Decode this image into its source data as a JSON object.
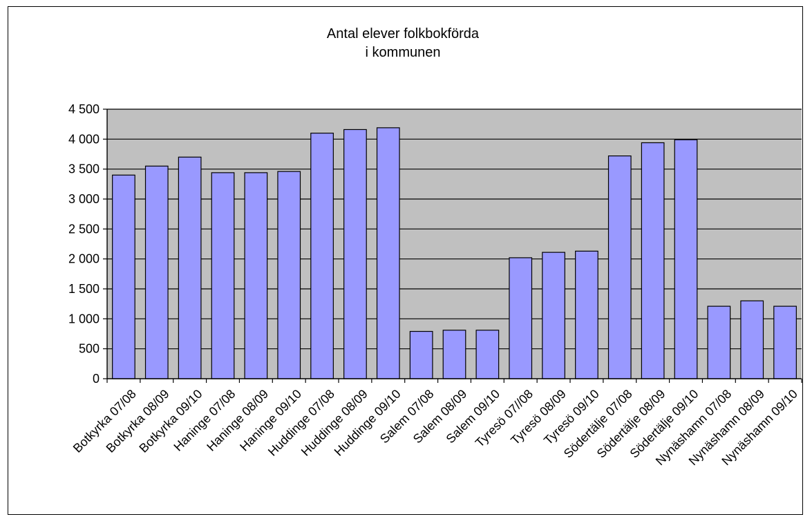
{
  "chart_data": {
    "type": "bar",
    "title_lines": [
      "Antal elever folkbokförda",
      "i kommunen"
    ],
    "categories": [
      "Botkyrka 07/08",
      "Botkyrka 08/09",
      "Botkyrka 09/10",
      "Haninge 07/08",
      "Haninge 08/09",
      "Haninge 09/10",
      "Huddinge 07/08",
      "Huddinge 08/09",
      "Huddinge 09/10",
      "Salem 07/08",
      "Salem 08/09",
      "Salem 09/10",
      "Tyresö 07//08",
      "Tyresö 08/09",
      "Tyresö 09/10",
      "Södertälje 07/08",
      "Södertälje 08/09",
      "Södertälje 09/10",
      "Nynäshamn 07/08",
      "Nynäshamn 08/09",
      "Nynäshamn 09/10"
    ],
    "values": [
      3400,
      3550,
      3700,
      3440,
      3440,
      3460,
      4100,
      4160,
      4190,
      790,
      810,
      810,
      2020,
      2110,
      2130,
      3720,
      3940,
      3990,
      1210,
      1300,
      1210
    ],
    "ylim": [
      0,
      4500
    ],
    "yticks": [
      0,
      500,
      1000,
      1500,
      2000,
      2500,
      3000,
      3500,
      4000,
      4500
    ],
    "ytick_labels": [
      "0",
      "500",
      "1 000",
      "1 500",
      "2 000",
      "2 500",
      "3 000",
      "3 500",
      "4 000",
      "4 500"
    ],
    "grid": true,
    "colors": {
      "bar_fill": "#9999ff",
      "bar_stroke": "#000000",
      "plot_background": "#c0c0c0",
      "grid": "#000000"
    }
  }
}
